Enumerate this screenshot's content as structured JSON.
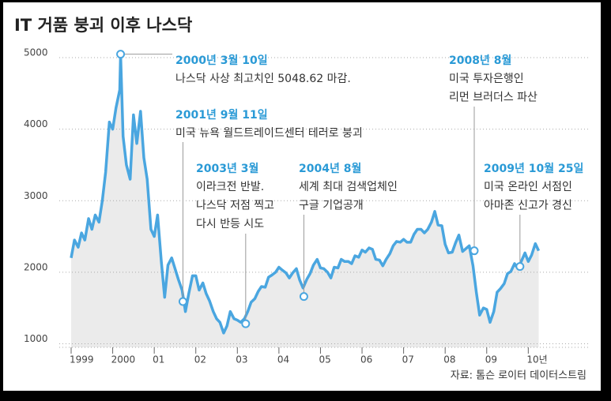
{
  "chart_data": {
    "type": "line",
    "title": "IT 거품 붕괴 이후 나스닥",
    "source": "자료: 톰슨 로이터 데이터스트림",
    "xlim": [
      1999,
      2010.45
    ],
    "xticks": [
      {
        "value": 1999,
        "label": "1999"
      },
      {
        "value": 2000,
        "label": "2000"
      },
      {
        "value": 2001,
        "label": "01"
      },
      {
        "value": 2002,
        "label": "02"
      },
      {
        "value": 2003,
        "label": "03"
      },
      {
        "value": 2004,
        "label": "04"
      },
      {
        "value": 2005,
        "label": "05"
      },
      {
        "value": 2006,
        "label": "06"
      },
      {
        "value": 2007,
        "label": "07"
      },
      {
        "value": 2008,
        "label": "08"
      },
      {
        "value": 2009,
        "label": "09"
      },
      {
        "value": 2010,
        "label": "10년"
      }
    ],
    "ylim": [
      950,
      5100
    ],
    "yticks": [
      1000,
      2000,
      3000,
      4000,
      5000
    ],
    "grid": true,
    "color": "#4aa6e0",
    "x": [
      1999.0,
      1999.08,
      1999.17,
      1999.25,
      1999.33,
      1999.42,
      1999.5,
      1999.58,
      1999.67,
      1999.75,
      1999.83,
      1999.92,
      2000.0,
      2000.08,
      2000.17,
      2000.19,
      2000.25,
      2000.33,
      2000.42,
      2000.5,
      2000.58,
      2000.67,
      2000.75,
      2000.83,
      2000.92,
      2001.0,
      2001.08,
      2001.17,
      2001.25,
      2001.33,
      2001.42,
      2001.5,
      2001.58,
      2001.67,
      2001.75,
      2001.83,
      2001.92,
      2002.0,
      2002.08,
      2002.17,
      2002.25,
      2002.33,
      2002.42,
      2002.5,
      2002.58,
      2002.67,
      2002.75,
      2002.83,
      2002.92,
      2003.0,
      2003.08,
      2003.17,
      2003.25,
      2003.33,
      2003.42,
      2003.5,
      2003.58,
      2003.67,
      2003.75,
      2003.83,
      2003.92,
      2004.0,
      2004.08,
      2004.17,
      2004.25,
      2004.33,
      2004.42,
      2004.5,
      2004.58,
      2004.67,
      2004.75,
      2004.83,
      2004.92,
      2005.0,
      2005.08,
      2005.17,
      2005.25,
      2005.33,
      2005.42,
      2005.5,
      2005.58,
      2005.67,
      2005.75,
      2005.83,
      2005.92,
      2006.0,
      2006.08,
      2006.17,
      2006.25,
      2006.33,
      2006.42,
      2006.5,
      2006.58,
      2006.67,
      2006.75,
      2006.83,
      2006.92,
      2007.0,
      2007.08,
      2007.17,
      2007.25,
      2007.33,
      2007.42,
      2007.5,
      2007.58,
      2007.67,
      2007.75,
      2007.83,
      2007.92,
      2008.0,
      2008.08,
      2008.17,
      2008.25,
      2008.33,
      2008.42,
      2008.5,
      2008.58,
      2008.67,
      2008.75,
      2008.83,
      2008.92,
      2009.0,
      2009.08,
      2009.17,
      2009.25,
      2009.33,
      2009.42,
      2009.5,
      2009.58,
      2009.67,
      2009.75,
      2009.83,
      2009.92,
      2010.0,
      2010.08,
      2010.17,
      2010.25
    ],
    "values": [
      2200,
      2450,
      2350,
      2550,
      2450,
      2750,
      2600,
      2800,
      2700,
      3000,
      3400,
      4100,
      4000,
      4300,
      4550,
      5048.62,
      3900,
      3500,
      3300,
      4200,
      3800,
      4250,
      3600,
      3300,
      2600,
      2500,
      2800,
      2150,
      1650,
      2100,
      2200,
      2050,
      1900,
      1750,
      1450,
      1700,
      1950,
      1950,
      1750,
      1850,
      1700,
      1600,
      1450,
      1350,
      1300,
      1150,
      1250,
      1450,
      1350,
      1330,
      1300,
      1350,
      1450,
      1580,
      1630,
      1730,
      1800,
      1790,
      1930,
      1960,
      2000,
      2070,
      2030,
      1990,
      1920,
      1990,
      2050,
      1890,
      1780,
      1900,
      1980,
      2100,
      2180,
      2060,
      2050,
      2000,
      1920,
      2070,
      2060,
      2180,
      2150,
      2150,
      2120,
      2230,
      2210,
      2310,
      2280,
      2340,
      2320,
      2180,
      2170,
      2090,
      2180,
      2260,
      2370,
      2430,
      2420,
      2460,
      2420,
      2420,
      2530,
      2600,
      2600,
      2550,
      2600,
      2700,
      2850,
      2660,
      2650,
      2390,
      2270,
      2280,
      2410,
      2520,
      2290,
      2330,
      2370,
      2090,
      1720,
      1400,
      1500,
      1480,
      1300,
      1450,
      1720,
      1770,
      1840,
      1980,
      2010,
      2120,
      2050,
      2150,
      2270,
      2150,
      2240,
      2400,
      2300
    ],
    "annotations": [
      {
        "date": "2000년 3월 10일",
        "lines": [
          "나스닥 사상 최고치인 5048.62 마감."
        ],
        "x": 2000.19,
        "y": 5048.62
      },
      {
        "date": "2001년 9월 11일",
        "lines": [
          "미국 뉴욕 월드트레이드센터 테러로 붕괴"
        ],
        "x": 2001.69,
        "y": 1590
      },
      {
        "date": "2003년 3월",
        "lines": [
          "이라크전 반발.",
          "나스닥 저점 찍고",
          "다시 반등 시도"
        ],
        "x": 2003.2,
        "y": 1280
      },
      {
        "date": "2004년 8월",
        "lines": [
          "세계 최대 검색업체인",
          "구글 기업공개"
        ],
        "x": 2004.6,
        "y": 1660
      },
      {
        "date": "2008년 8월",
        "lines": [
          "미국 투자은행인",
          "리먼 브러더스 파산"
        ],
        "x": 2008.7,
        "y": 2300
      },
      {
        "date": "2009년 10월 25일",
        "lines": [
          "미국 온라인 서점인",
          "아마존 신고가 경신"
        ],
        "x": 2009.8,
        "y": 2080
      }
    ]
  }
}
